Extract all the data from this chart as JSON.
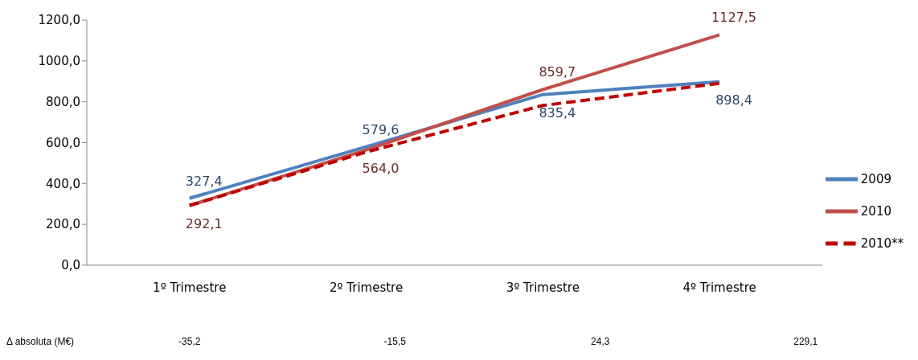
{
  "chart_data": {
    "type": "line",
    "categories": [
      "1º Trimestre",
      "2º Trimestre",
      "3º Trimestre",
      "4º Trimestre"
    ],
    "series": [
      {
        "name": "2009",
        "color": "#4f81bd",
        "values": [
          327.4,
          579.6,
          835.4,
          898.4
        ],
        "value_labels": [
          "327,4",
          "579,6",
          "835,4",
          "898,4"
        ],
        "line_style": "solid"
      },
      {
        "name": "2010",
        "color": "#c0504d",
        "values": [
          292.1,
          564.0,
          859.7,
          1127.5
        ],
        "value_labels": [
          "292,1",
          "564,0",
          "859,7",
          "1127,5"
        ],
        "line_style": "solid"
      },
      {
        "name": "2010**",
        "color": "#c00000",
        "values": [
          292,
          554,
          782,
          890
        ],
        "line_style": "dashed"
      }
    ],
    "ylim": [
      0,
      1200
    ],
    "yticks": [
      {
        "value": 0,
        "label": "0,0"
      },
      {
        "value": 200,
        "label": "200,0"
      },
      {
        "value": 400,
        "label": "400,0"
      },
      {
        "value": 600,
        "label": "600,0"
      },
      {
        "value": 800,
        "label": "800,0"
      },
      {
        "value": 1000,
        "label": "1000,0"
      },
      {
        "value": 1200,
        "label": "1200,0"
      }
    ],
    "annotations": [
      "Δ absoluta (M€)",
      "-35,2",
      "-15,5",
      "24,3",
      "229,1"
    ],
    "grid": false,
    "legend": "right",
    "marker": "none"
  }
}
